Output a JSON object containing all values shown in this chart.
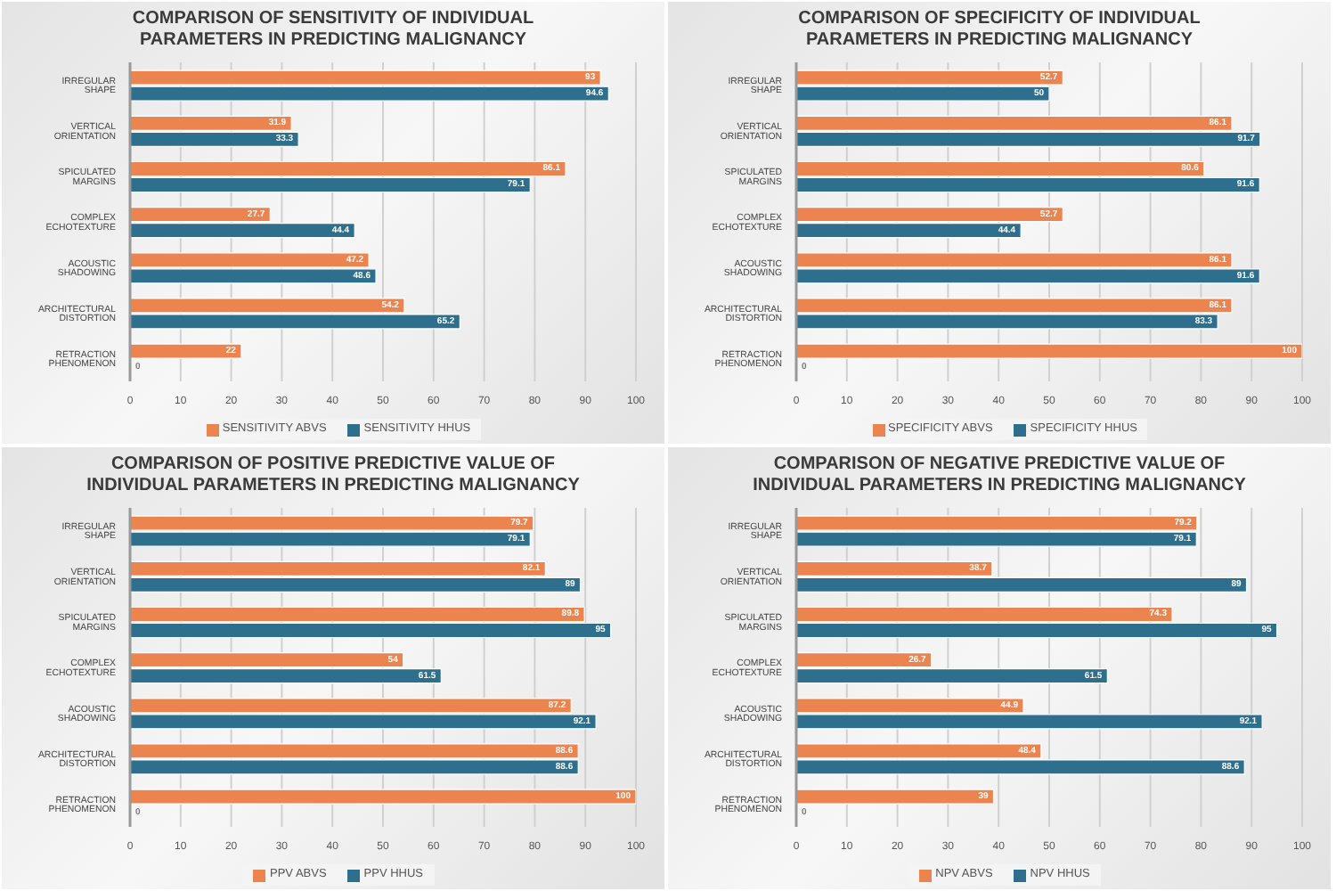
{
  "chart_data": [
    {
      "type": "bar",
      "orientation": "horizontal",
      "title": "COMPARISON OF SENSITIVITY OF INDIVIDUAL PARAMETERS IN PREDICTING MALIGNANCY",
      "categories": [
        "IRREGULAR SHAPE",
        "VERTICAL ORIENTATION",
        "SPICULATED MARGINS",
        "COMPLEX ECHOTEXTURE",
        "ACOUSTIC SHADOWING",
        "ARCHITECTURAL DISTORTION",
        "RETRACTION PHENOMENON"
      ],
      "series": [
        {
          "name": "SENSITIVITY ABVS",
          "color": "#ec8450",
          "values": [
            93,
            31.9,
            86.1,
            27.7,
            47.2,
            54.2,
            22
          ]
        },
        {
          "name": "SENSITIVITY HHUS",
          "color": "#2f6f8e",
          "values": [
            94.6,
            33.3,
            79.1,
            44.4,
            48.6,
            65.2,
            0
          ]
        }
      ],
      "xlim": [
        0,
        100
      ],
      "xticks": [
        0,
        10,
        20,
        30,
        40,
        50,
        60,
        70,
        80,
        90,
        100
      ],
      "grid": "x",
      "legend": "bottom",
      "data_labels": true
    },
    {
      "type": "bar",
      "orientation": "horizontal",
      "title": "COMPARISON OF SPECIFICITY OF INDIVIDUAL PARAMETERS IN PREDICTING MALIGNANCY",
      "categories": [
        "IRREGULAR SHAPE",
        "VERTICAL ORIENTATION",
        "SPICULATED MARGINS",
        "COMPLEX ECHOTEXTURE",
        "ACOUSTIC SHADOWING",
        "ARCHITECTURAL DISTORTION",
        "RETRACTION PHENOMENON"
      ],
      "series": [
        {
          "name": "SPECIFICITY ABVS",
          "color": "#ec8450",
          "values": [
            52.7,
            86.1,
            80.6,
            52.7,
            86.1,
            86.1,
            100
          ]
        },
        {
          "name": "SPECIFICITY HHUS",
          "color": "#2f6f8e",
          "values": [
            50,
            91.7,
            91.6,
            44.4,
            91.6,
            83.3,
            0
          ]
        }
      ],
      "xlim": [
        0,
        100
      ],
      "xticks": [
        0,
        10,
        20,
        30,
        40,
        50,
        60,
        70,
        80,
        90,
        100
      ],
      "grid": "x",
      "legend": "bottom",
      "data_labels": true
    },
    {
      "type": "bar",
      "orientation": "horizontal",
      "title": "COMPARISON OF POSITIVE PREDICTIVE VALUE OF INDIVIDUAL PARAMETERS IN PREDICTING MALIGNANCY",
      "categories": [
        "IRREGULAR SHAPE",
        "VERTICAL ORIENTATION",
        "SPICULATED MARGINS",
        "COMPLEX ECHOTEXTURE",
        "ACOUSTIC SHADOWING",
        "ARCHITECTURAL DISTORTION",
        "RETRACTION PHENOMENON"
      ],
      "series": [
        {
          "name": "PPV ABVS",
          "color": "#ec8450",
          "values": [
            79.7,
            82.1,
            89.8,
            54,
            87.2,
            88.6,
            100
          ]
        },
        {
          "name": "PPV HHUS",
          "color": "#2f6f8e",
          "values": [
            79.1,
            89,
            95,
            61.5,
            92.1,
            88.6,
            0
          ]
        }
      ],
      "xlim": [
        0,
        100
      ],
      "xticks": [
        0,
        10,
        20,
        30,
        40,
        50,
        60,
        70,
        80,
        90,
        100
      ],
      "grid": "x",
      "legend": "bottom",
      "data_labels": true
    },
    {
      "type": "bar",
      "orientation": "horizontal",
      "title": "COMPARISON OF NEGATIVE PREDICTIVE VALUE OF INDIVIDUAL PARAMETERS IN PREDICTING MALIGNANCY",
      "categories": [
        "IRREGULAR SHAPE",
        "VERTICAL ORIENTATION",
        "SPICULATED MARGINS",
        "COMPLEX ECHOTEXTURE",
        "ACOUSTIC SHADOWING",
        "ARCHITECTURAL DISTORTION",
        "RETRACTION PHENOMENON"
      ],
      "series": [
        {
          "name": "NPV ABVS",
          "color": "#ec8450",
          "values": [
            79.2,
            38.7,
            74.3,
            26.7,
            44.9,
            48.4,
            39
          ]
        },
        {
          "name": "NPV HHUS",
          "color": "#2f6f8e",
          "values": [
            79.1,
            89,
            95,
            61.5,
            92.1,
            88.6,
            0
          ]
        }
      ],
      "xlim": [
        0,
        100
      ],
      "xticks": [
        0,
        10,
        20,
        30,
        40,
        50,
        60,
        70,
        80,
        90,
        100
      ],
      "grid": "x",
      "legend": "bottom",
      "data_labels": true
    }
  ]
}
